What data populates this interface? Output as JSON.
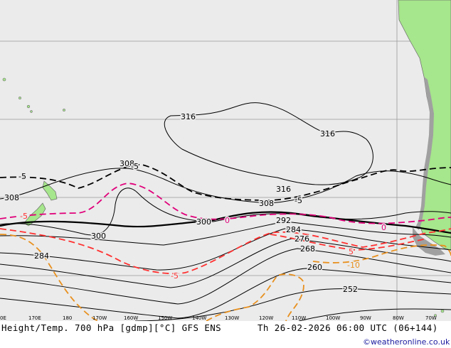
{
  "map": {
    "title": "Height/Temp. 700 hPa [gdmp][°C] GFS ENS",
    "valid_time": "Th 26-02-2026 06:00 UTC (06+144)",
    "credit": "©weatheronline.co.uk",
    "longitude_ticks": [
      "170E",
      "180",
      "170W",
      "160W",
      "150W",
      "140W",
      "130W",
      "120W",
      "110W",
      "100W",
      "90W",
      "80W",
      "70W"
    ],
    "left_edge_tick": "0E",
    "height_labels": [
      "316",
      "316",
      "316",
      "308",
      "308",
      "308",
      "300",
      "300",
      "292",
      "284",
      "284",
      "276",
      "268",
      "260",
      "252"
    ],
    "temp_labels": [
      "-5",
      "-5",
      "0",
      "-5",
      "0",
      "5",
      "-5",
      "-5",
      "-10"
    ],
    "colors": {
      "ocean": "#ebebeb",
      "land": "#a6e68c",
      "height_line": "#000000",
      "temp_zero": "#e0007a",
      "temp_neg": "#ff3030",
      "temp_pos": "#e8901e",
      "grid": "#9a9a9a"
    }
  }
}
